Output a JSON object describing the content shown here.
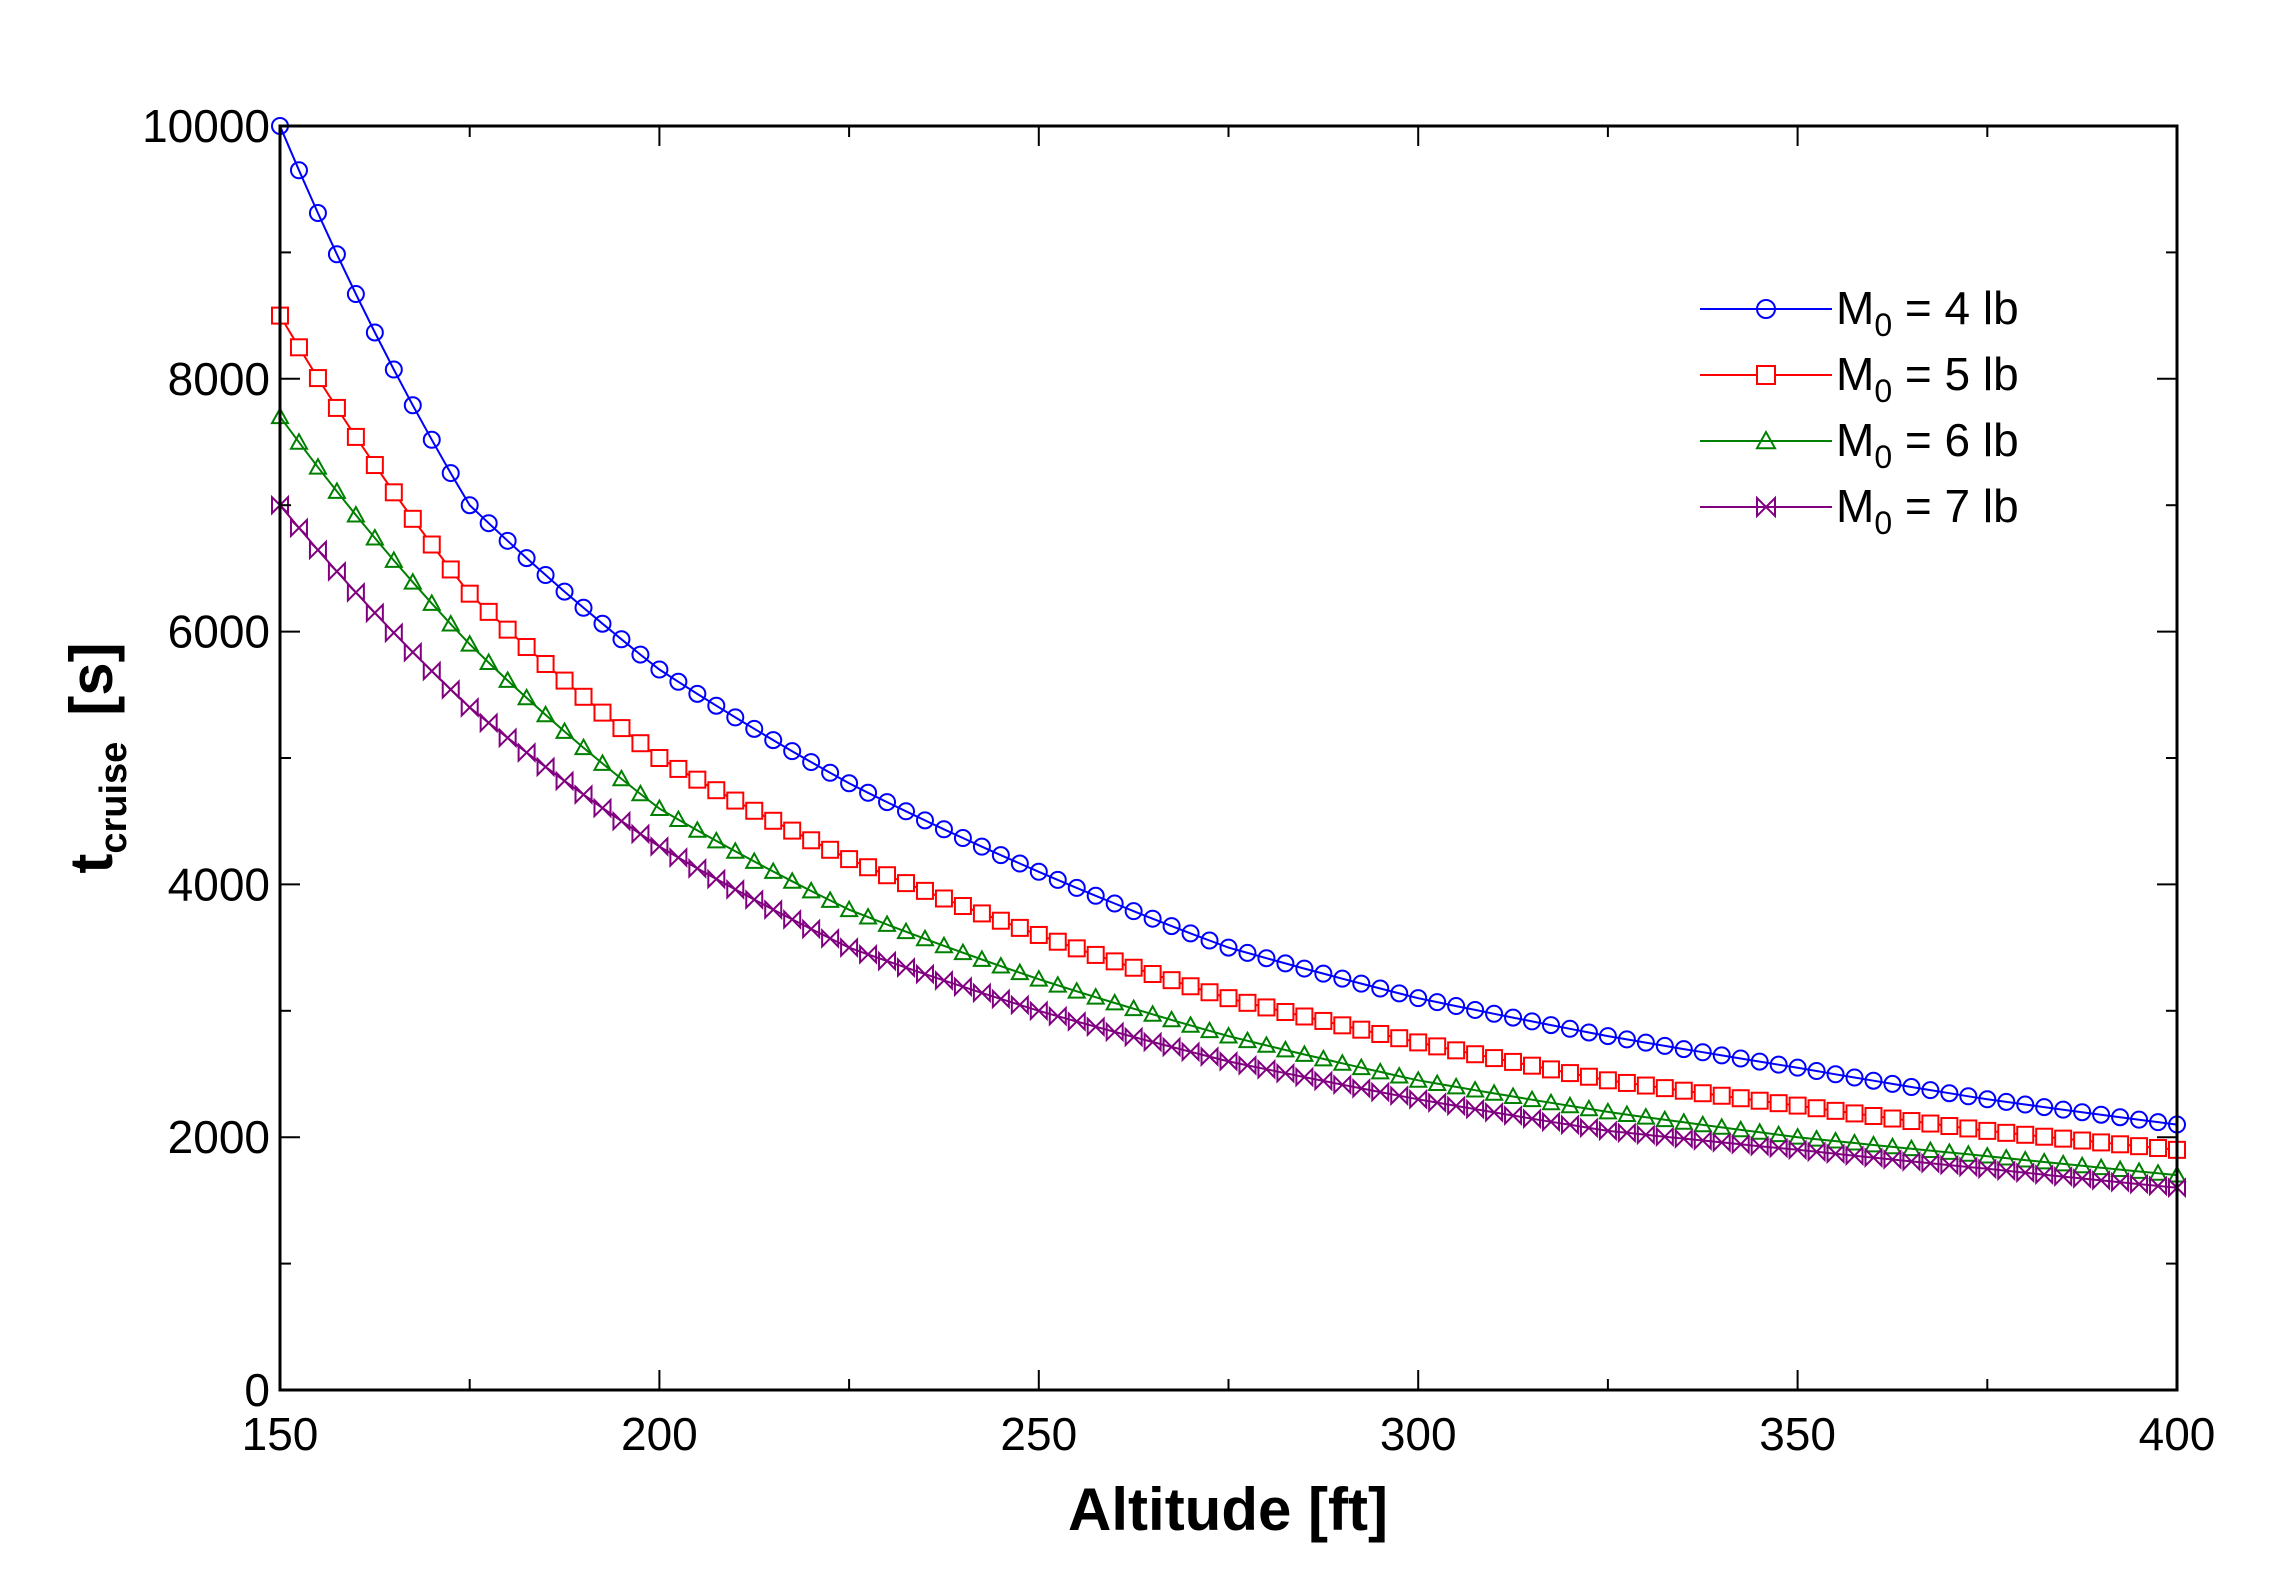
{
  "chart_data": {
    "type": "line",
    "title": "",
    "xlabel": "Altitude [ft]",
    "ylabel": {
      "main": "t",
      "subscript": "cruise",
      "unit": "[s]"
    },
    "xlim": [
      150,
      400
    ],
    "ylim": [
      0,
      10000
    ],
    "x_ticks": [
      "150",
      "200",
      "250",
      "300",
      "350",
      "400"
    ],
    "y_ticks": [
      "0",
      "2000",
      "4000",
      "6000",
      "8000",
      "10000"
    ],
    "grid": false,
    "legend_position": "top-right",
    "x": [
      150,
      175,
      200,
      225,
      250,
      275,
      300,
      325,
      350,
      375,
      400
    ],
    "series": [
      {
        "name": "M0 = 4 lb",
        "label_main": "M",
        "label_sub": "0",
        "label_rest": " = 4 lb",
        "color": "#0000ff",
        "marker": "circle",
        "values": [
          10000,
          7000,
          5700,
          4800,
          4100,
          3500,
          3100,
          2800,
          2550,
          2300,
          2100
        ]
      },
      {
        "name": "M0 = 5 lb",
        "label_main": "M",
        "label_sub": "0",
        "label_rest": " = 5 lb",
        "color": "#ff0000",
        "marker": "square",
        "values": [
          8500,
          6300,
          5000,
          4200,
          3600,
          3100,
          2750,
          2450,
          2250,
          2050,
          1900
        ]
      },
      {
        "name": "M0 = 6 lb",
        "label_main": "M",
        "label_sub": "0",
        "label_rest": " = 6 lb",
        "color": "#008000",
        "marker": "triangle",
        "values": [
          7700,
          5900,
          4600,
          3800,
          3250,
          2800,
          2450,
          2200,
          2000,
          1850,
          1700
        ]
      },
      {
        "name": "M0 = 7 lb",
        "label_main": "M",
        "label_sub": "0",
        "label_rest": " = 7 lb",
        "color": "#800080",
        "marker": "bowtie",
        "values": [
          7000,
          5400,
          4300,
          3500,
          3000,
          2600,
          2300,
          2050,
          1900,
          1750,
          1600
        ]
      }
    ]
  }
}
